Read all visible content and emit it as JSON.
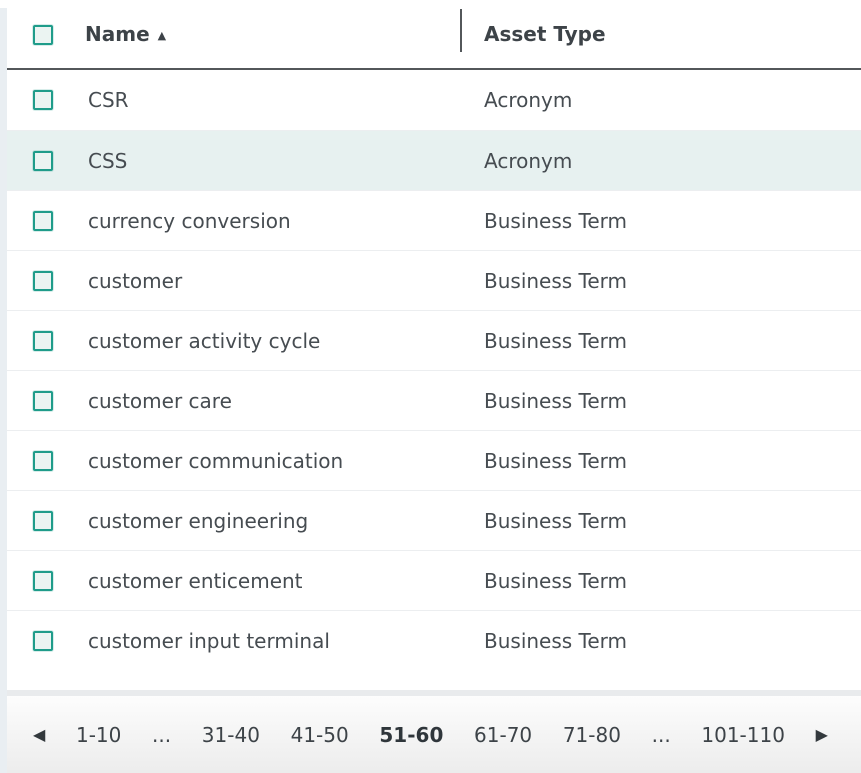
{
  "table": {
    "columns": [
      {
        "label": "Name",
        "sorted": "ascending"
      },
      {
        "label": "Asset Type",
        "sorted": null
      }
    ],
    "rows": [
      {
        "name": "CSR",
        "asset_type": "Acronym",
        "checked": false,
        "highlighted": false
      },
      {
        "name": "CSS",
        "asset_type": "Acronym",
        "checked": false,
        "highlighted": true
      },
      {
        "name": "currency conversion",
        "asset_type": "Business Term",
        "checked": false,
        "highlighted": false
      },
      {
        "name": "customer",
        "asset_type": "Business Term",
        "checked": false,
        "highlighted": false
      },
      {
        "name": "customer activity cycle",
        "asset_type": "Business Term",
        "checked": false,
        "highlighted": false
      },
      {
        "name": "customer care",
        "asset_type": "Business Term",
        "checked": false,
        "highlighted": false
      },
      {
        "name": "customer communication",
        "asset_type": "Business Term",
        "checked": false,
        "highlighted": false
      },
      {
        "name": "customer engineering",
        "asset_type": "Business Term",
        "checked": false,
        "highlighted": false
      },
      {
        "name": "customer enticement",
        "asset_type": "Business Term",
        "checked": false,
        "highlighted": false
      },
      {
        "name": "customer input terminal",
        "asset_type": "Business Term",
        "checked": false,
        "highlighted": false
      }
    ]
  },
  "icons": {
    "sort_ascending": "▲",
    "previous_page": "◀",
    "next_page": "▶"
  },
  "pagination": {
    "pages": [
      {
        "label": "1-10",
        "current": false,
        "ellipsis": false
      },
      {
        "label": "...",
        "current": false,
        "ellipsis": true
      },
      {
        "label": "31-40",
        "current": false,
        "ellipsis": false
      },
      {
        "label": "41-50",
        "current": false,
        "ellipsis": false
      },
      {
        "label": "51-60",
        "current": true,
        "ellipsis": false
      },
      {
        "label": "61-70",
        "current": false,
        "ellipsis": false
      },
      {
        "label": "71-80",
        "current": false,
        "ellipsis": false
      },
      {
        "label": "...",
        "current": false,
        "ellipsis": true
      },
      {
        "label": "101-110",
        "current": false,
        "ellipsis": false
      }
    ]
  },
  "colors": {
    "accent": "#1f9c8a",
    "checkbox_bg": "#ebf4f2",
    "row_highlight": "#e7f1f0",
    "stripe": "#e9eef2",
    "separator": "#eceef0",
    "line_dark": "#53575a",
    "band": "#e9ebed",
    "text": "#464c51",
    "text_header": "#3d4348",
    "pag_top": "#fdfdfd",
    "pag_bottom": "#ececec"
  }
}
